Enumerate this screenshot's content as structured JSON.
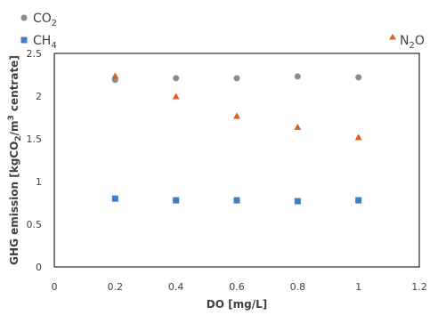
{
  "chart_data": {
    "type": "scatter",
    "xlabel": "DO [mg/L]",
    "ylabel": {
      "pre": "GHG emission [kgCO",
      "sub1": "2",
      "mid": "/m",
      "sup": "3",
      "post": " centrate]"
    },
    "xlim": [
      0,
      1.2
    ],
    "ylim": [
      0,
      2.5
    ],
    "x_ticks": [
      "0",
      "0.2",
      "0.4",
      "0.6",
      "0.8",
      "1",
      "1.2"
    ],
    "y_ticks": [
      "0",
      "0.5",
      "1",
      "1.5",
      "2",
      "2.5"
    ],
    "grid": false,
    "legend_position": "top",
    "series": [
      {
        "name": "CO2",
        "label_main": "CO",
        "label_sub": "2",
        "marker": "circle",
        "color": "#8c8c8c",
        "points": [
          {
            "x": 0.2,
            "y": 2.19
          },
          {
            "x": 0.4,
            "y": 2.21
          },
          {
            "x": 0.6,
            "y": 2.21
          },
          {
            "x": 0.8,
            "y": 2.23
          },
          {
            "x": 1.0,
            "y": 2.22
          }
        ]
      },
      {
        "name": "CH4",
        "label_main": "CH",
        "label_sub": "4",
        "marker": "square",
        "color": "#3d7fc1",
        "points": [
          {
            "x": 0.2,
            "y": 0.8
          },
          {
            "x": 0.4,
            "y": 0.78
          },
          {
            "x": 0.6,
            "y": 0.78
          },
          {
            "x": 0.8,
            "y": 0.77
          },
          {
            "x": 1.0,
            "y": 0.78
          }
        ]
      },
      {
        "name": "N2O",
        "label_main": "N",
        "label_sub": "2",
        "label_tail": "O",
        "marker": "triangle",
        "color": "#d5631f",
        "points": [
          {
            "x": 0.2,
            "y": 2.23
          },
          {
            "x": 0.4,
            "y": 1.99
          },
          {
            "x": 0.6,
            "y": 1.76
          },
          {
            "x": 0.8,
            "y": 1.63
          },
          {
            "x": 1.0,
            "y": 1.51
          }
        ]
      }
    ]
  }
}
